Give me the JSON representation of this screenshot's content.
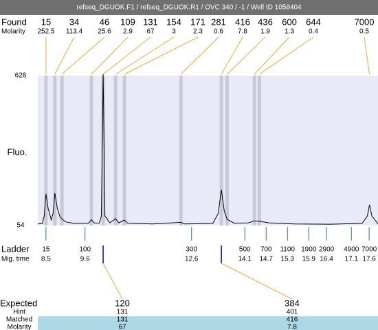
{
  "header": {
    "title": "refseq_DGUOK.F1 / refseq_DGUOK.R1 / OVC 340 / -1 / Well ID 1058404"
  },
  "found": {
    "label": "Found",
    "molarity_label": "Molarity",
    "peaks": [
      {
        "size": 15,
        "molarity": 252.5,
        "time": 8.5
      },
      {
        "size": 34,
        "molarity": 113.4,
        "time": 8.75
      },
      {
        "size": 46,
        "molarity": 25.6,
        "time": 8.95
      },
      {
        "size": 109,
        "molarity": 2.9,
        "time": 9.78
      },
      {
        "size": 131,
        "molarity": 67,
        "time": 10.11
      },
      {
        "size": 154,
        "molarity": 3,
        "time": 10.46
      },
      {
        "size": 171,
        "molarity": 2.3,
        "time": 10.71
      },
      {
        "size": 281,
        "molarity": 0.6,
        "time": 12.3
      },
      {
        "size": 416,
        "molarity": 7.8,
        "time": 13.44
      },
      {
        "size": 436,
        "molarity": 1.9,
        "time": 13.6
      },
      {
        "size": 600,
        "molarity": 1.3,
        "time": 14.37
      },
      {
        "size": 644,
        "molarity": 0.4,
        "time": 14.51
      },
      {
        "size": 7000,
        "molarity": 0.5,
        "time": 17.61
      }
    ]
  },
  "chart_data": {
    "type": "line",
    "ylabel": "Fluo.",
    "color": "#000000",
    "x": [
      8.27,
      8.4,
      8.45,
      8.5,
      8.56,
      8.65,
      8.7,
      8.75,
      8.82,
      8.9,
      8.95,
      9.05,
      9.3,
      9.7,
      9.78,
      9.86,
      10.0,
      10.06,
      10.11,
      10.16,
      10.3,
      10.46,
      10.55,
      10.71,
      10.8,
      11.5,
      12.3,
      12.4,
      13.2,
      13.35,
      13.44,
      13.52,
      13.6,
      13.8,
      14.2,
      14.37,
      14.51,
      14.8,
      15.5,
      16.5,
      17.4,
      17.55,
      17.61,
      17.68,
      17.85
    ],
    "values": [
      60,
      62,
      90,
      175,
      120,
      75,
      100,
      178,
      120,
      85,
      80,
      68,
      62,
      63,
      76,
      64,
      63,
      90,
      640,
      90,
      64,
      80,
      64,
      75,
      63,
      60,
      66,
      60,
      62,
      100,
      191,
      110,
      78,
      63,
      64,
      72,
      70,
      64,
      60,
      59,
      62,
      90,
      133,
      90,
      60
    ],
    "xlim": [
      8.27,
      17.85
    ],
    "ylim": [
      54,
      628
    ],
    "yticks": [
      54,
      628
    ]
  },
  "ladder": {
    "label": "Ladder",
    "time_label": "Mig. time",
    "items": [
      {
        "size": 15,
        "mig_time": 8.5
      },
      {
        "size": 100,
        "mig_time": 9.6
      },
      {
        "size": 300,
        "mig_time": 12.6
      },
      {
        "size": 500,
        "mig_time": 14.1
      },
      {
        "size": 700,
        "mig_time": 14.7
      },
      {
        "size": 1100,
        "mig_time": 15.3
      },
      {
        "size": 1900,
        "mig_time": 15.9
      },
      {
        "size": 2900,
        "mig_time": 16.4
      },
      {
        "size": 4900,
        "mig_time": 17.1
      },
      {
        "size": 7000,
        "mig_time": 17.6
      }
    ]
  },
  "expected": {
    "label": "Expected",
    "hint_label": "Hint",
    "matched_label": "Matched",
    "molarity_label": "Molarity",
    "items": [
      {
        "size": 120,
        "hint": 131,
        "matched": 131,
        "molarity": 67,
        "peak": 4
      },
      {
        "size": 384,
        "hint": 401,
        "matched": 416,
        "molarity": 7.8,
        "peak": 8
      }
    ]
  }
}
